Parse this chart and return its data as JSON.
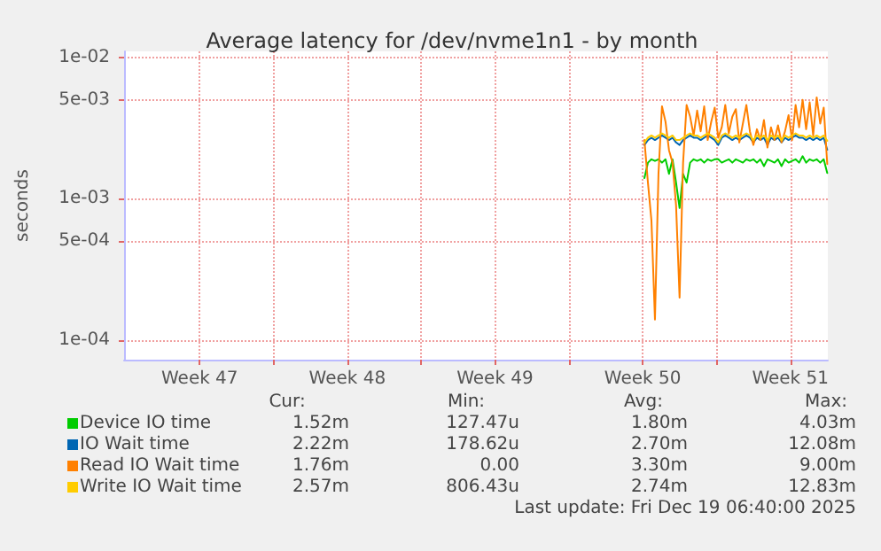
{
  "chart_data": {
    "type": "line",
    "title": "Average latency for /dev/nvme1n1 - by month",
    "ylabel": "seconds",
    "log": "y",
    "grid": true,
    "legend": "bottom left",
    "marker": "none",
    "line_style": "solid",
    "xlim": [
      "2025-11-15T22:00",
      "2025-12-19T06:40"
    ],
    "xticks": [
      {
        "value": "2025-11-19T12:00",
        "label": "Week 47"
      },
      {
        "value": "2025-11-23T00:00",
        "label": null
      },
      {
        "value": "2025-11-26T12:00",
        "label": "Week 48"
      },
      {
        "value": "2025-11-30T00:00",
        "label": null
      },
      {
        "value": "2025-12-03T12:00",
        "label": "Week 49"
      },
      {
        "value": "2025-12-07T00:00",
        "label": null
      },
      {
        "value": "2025-12-10T12:00",
        "label": "Week 50"
      },
      {
        "value": "2025-12-14T00:00",
        "label": null
      },
      {
        "value": "2025-12-17T12:00",
        "label": "Week 51"
      }
    ],
    "ylim": [
      7.3e-05,
      0.011
    ],
    "yticks": [
      {
        "value": 0.0001,
        "label": "1e-04"
      },
      {
        "value": 0.0005,
        "label": "5e-04"
      },
      {
        "value": 0.001,
        "label": "1e-03"
      },
      {
        "value": 0.005,
        "label": "5e-03"
      },
      {
        "value": 0.01,
        "label": "1e-02"
      }
    ],
    "x": [
      "2025-12-10T14:00",
      "2025-12-10T18:00",
      "2025-12-10T22:00",
      "2025-12-11T02:00",
      "2025-12-11T06:00",
      "2025-12-11T10:00",
      "2025-12-11T14:00",
      "2025-12-11T18:00",
      "2025-12-11T22:00",
      "2025-12-12T02:00",
      "2025-12-12T06:00",
      "2025-12-12T10:00",
      "2025-12-12T14:00",
      "2025-12-12T18:00",
      "2025-12-12T22:00",
      "2025-12-13T02:00",
      "2025-12-13T06:00",
      "2025-12-13T10:00",
      "2025-12-13T14:00",
      "2025-12-13T18:00",
      "2025-12-13T22:00",
      "2025-12-14T02:00",
      "2025-12-14T06:00",
      "2025-12-14T10:00",
      "2025-12-14T14:00",
      "2025-12-14T18:00",
      "2025-12-14T22:00",
      "2025-12-15T02:00",
      "2025-12-15T06:00",
      "2025-12-15T10:00",
      "2025-12-15T14:00",
      "2025-12-15T18:00",
      "2025-12-15T22:00",
      "2025-12-16T02:00",
      "2025-12-16T06:00",
      "2025-12-16T10:00",
      "2025-12-16T14:00",
      "2025-12-16T18:00",
      "2025-12-16T22:00",
      "2025-12-17T02:00",
      "2025-12-17T06:00",
      "2025-12-17T10:00",
      "2025-12-17T14:00",
      "2025-12-17T18:00",
      "2025-12-17T22:00",
      "2025-12-18T02:00",
      "2025-12-18T06:00",
      "2025-12-18T10:00",
      "2025-12-18T14:00",
      "2025-12-18T18:00",
      "2025-12-18T22:00",
      "2025-12-19T02:00",
      "2025-12-19T06:00"
    ],
    "series": [
      {
        "name": "Device IO time",
        "color": "#00cc00",
        "values": [
          0.0014,
          0.0018,
          0.0019,
          0.00185,
          0.0019,
          0.0018,
          0.0019,
          0.0015,
          0.0019,
          0.0013,
          0.00086,
          0.0015,
          0.0013,
          0.0018,
          0.0019,
          0.00185,
          0.0019,
          0.0018,
          0.0019,
          0.00185,
          0.0019,
          0.0019,
          0.0018,
          0.00185,
          0.0019,
          0.0018,
          0.0019,
          0.00185,
          0.0018,
          0.0019,
          0.00185,
          0.0019,
          0.0018,
          0.0019,
          0.0017,
          0.0019,
          0.00185,
          0.0018,
          0.0019,
          0.0017,
          0.0019,
          0.0018,
          0.00185,
          0.0019,
          0.0018,
          0.002,
          0.0018,
          0.0019,
          0.00185,
          0.0019,
          0.0018,
          0.0019,
          0.00152
        ]
      },
      {
        "name": "IO Wait time",
        "color": "#0066b3",
        "values": [
          0.0024,
          0.0026,
          0.0027,
          0.0026,
          0.0027,
          0.0028,
          0.0027,
          0.0026,
          0.0027,
          0.0025,
          0.0024,
          0.0026,
          0.0027,
          0.0028,
          0.0027,
          0.0027,
          0.0026,
          0.0027,
          0.0028,
          0.0027,
          0.0026,
          0.0024,
          0.0027,
          0.0028,
          0.0027,
          0.0026,
          0.0027,
          0.0026,
          0.0027,
          0.0028,
          0.0027,
          0.0025,
          0.0027,
          0.0026,
          0.0027,
          0.0024,
          0.0027,
          0.0026,
          0.0027,
          0.0025,
          0.0027,
          0.0026,
          0.0027,
          0.0028,
          0.0027,
          0.0027,
          0.0026,
          0.0027,
          0.0026,
          0.0027,
          0.0026,
          0.0027,
          0.00222
        ]
      },
      {
        "name": "Read IO Wait time",
        "color": "#ff8000",
        "values": [
          0.0026,
          0.0013,
          0.0007,
          0.00014,
          0.0015,
          0.0045,
          0.0035,
          0.0022,
          0.0018,
          0.0009,
          0.0002,
          0.0018,
          0.0046,
          0.0038,
          0.0028,
          0.0042,
          0.003,
          0.0045,
          0.0026,
          0.0035,
          0.0044,
          0.0027,
          0.0032,
          0.0046,
          0.0029,
          0.0038,
          0.0043,
          0.0025,
          0.0034,
          0.0046,
          0.003,
          0.0024,
          0.0031,
          0.0026,
          0.0036,
          0.0023,
          0.0032,
          0.0026,
          0.0033,
          0.0025,
          0.003,
          0.0039,
          0.0026,
          0.0046,
          0.0032,
          0.005,
          0.0031,
          0.0048,
          0.0028,
          0.0052,
          0.0034,
          0.0044,
          0.00176
        ]
      },
      {
        "name": "Write IO Wait time",
        "color": "#ffcc00",
        "values": [
          0.0025,
          0.0027,
          0.0028,
          0.0027,
          0.0028,
          0.0029,
          0.0028,
          0.0027,
          0.0028,
          0.0026,
          0.0026,
          0.0027,
          0.0028,
          0.0029,
          0.0028,
          0.0028,
          0.0027,
          0.0028,
          0.0029,
          0.0028,
          0.0027,
          0.0025,
          0.0028,
          0.0029,
          0.0028,
          0.0027,
          0.0028,
          0.0027,
          0.0028,
          0.0029,
          0.0028,
          0.0026,
          0.0028,
          0.0027,
          0.0028,
          0.0026,
          0.0028,
          0.0027,
          0.0028,
          0.0026,
          0.0028,
          0.0027,
          0.0028,
          0.0029,
          0.0028,
          0.0028,
          0.0027,
          0.0028,
          0.0027,
          0.0028,
          0.0027,
          0.0028,
          0.00257
        ]
      }
    ],
    "annotations": [
      "Cur:",
      "Min:",
      "Avg:",
      "Max:",
      "1.52m",
      "127.47u",
      "1.80m",
      "4.03m",
      "2.22m",
      "178.62u",
      "2.70m",
      "12.08m",
      "1.76m",
      "0.00",
      "3.30m",
      "9.00m",
      "2.57m",
      "806.43u",
      "2.74m",
      "12.83m",
      "Last update: Fri Dec 19 06:40:00 2025"
    ]
  }
}
